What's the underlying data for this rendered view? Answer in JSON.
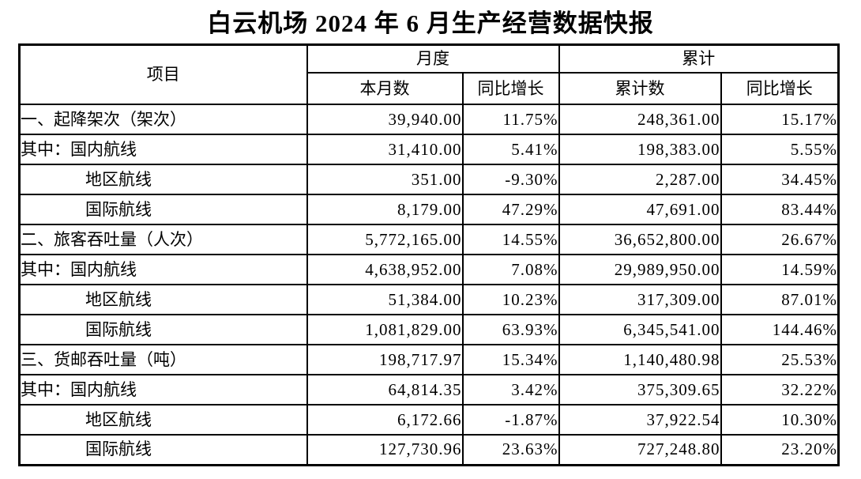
{
  "title": "白云机场 2024 年 6 月生产经营数据快报",
  "colors": {
    "background": "#ffffff",
    "text": "#000000",
    "border": "#000000"
  },
  "table": {
    "headers": {
      "item": "项目",
      "monthly_group": "月度",
      "cumulative_group": "累计",
      "monthly_value": "本月数",
      "monthly_yoy": "同比增长",
      "cumulative_value": "累计数",
      "cumulative_yoy": "同比增长"
    },
    "rows": [
      {
        "label": "一、起降架次（架次）",
        "indent": false,
        "monthly": "39,940.00",
        "monthly_yoy": "11.75%",
        "cumulative": "248,361.00",
        "cumulative_yoy": "15.17%"
      },
      {
        "label": "其中：国内航线",
        "indent": false,
        "monthly": "31,410.00",
        "monthly_yoy": "5.41%",
        "cumulative": "198,383.00",
        "cumulative_yoy": "5.55%"
      },
      {
        "label": "地区航线",
        "indent": true,
        "monthly": "351.00",
        "monthly_yoy": "-9.30%",
        "cumulative": "2,287.00",
        "cumulative_yoy": "34.45%"
      },
      {
        "label": "国际航线",
        "indent": true,
        "monthly": "8,179.00",
        "monthly_yoy": "47.29%",
        "cumulative": "47,691.00",
        "cumulative_yoy": "83.44%"
      },
      {
        "label": "二、旅客吞吐量（人次）",
        "indent": false,
        "monthly": "5,772,165.00",
        "monthly_yoy": "14.55%",
        "cumulative": "36,652,800.00",
        "cumulative_yoy": "26.67%"
      },
      {
        "label": "其中：国内航线",
        "indent": false,
        "monthly": "4,638,952.00",
        "monthly_yoy": "7.08%",
        "cumulative": "29,989,950.00",
        "cumulative_yoy": "14.59%"
      },
      {
        "label": "地区航线",
        "indent": true,
        "monthly": "51,384.00",
        "monthly_yoy": "10.23%",
        "cumulative": "317,309.00",
        "cumulative_yoy": "87.01%"
      },
      {
        "label": "国际航线",
        "indent": true,
        "monthly": "1,081,829.00",
        "monthly_yoy": "63.93%",
        "cumulative": "6,345,541.00",
        "cumulative_yoy": "144.46%"
      },
      {
        "label": "三、货邮吞吐量（吨）",
        "indent": false,
        "monthly": "198,717.97",
        "monthly_yoy": "15.34%",
        "cumulative": "1,140,480.98",
        "cumulative_yoy": "25.53%"
      },
      {
        "label": "其中：国内航线",
        "indent": false,
        "monthly": "64,814.35",
        "monthly_yoy": "3.42%",
        "cumulative": "375,309.65",
        "cumulative_yoy": "32.22%"
      },
      {
        "label": "地区航线",
        "indent": true,
        "monthly": "6,172.66",
        "monthly_yoy": "-1.87%",
        "cumulative": "37,922.54",
        "cumulative_yoy": "10.30%"
      },
      {
        "label": "国际航线",
        "indent": true,
        "monthly": "127,730.96",
        "monthly_yoy": "23.63%",
        "cumulative": "727,248.80",
        "cumulative_yoy": "23.20%"
      }
    ]
  }
}
